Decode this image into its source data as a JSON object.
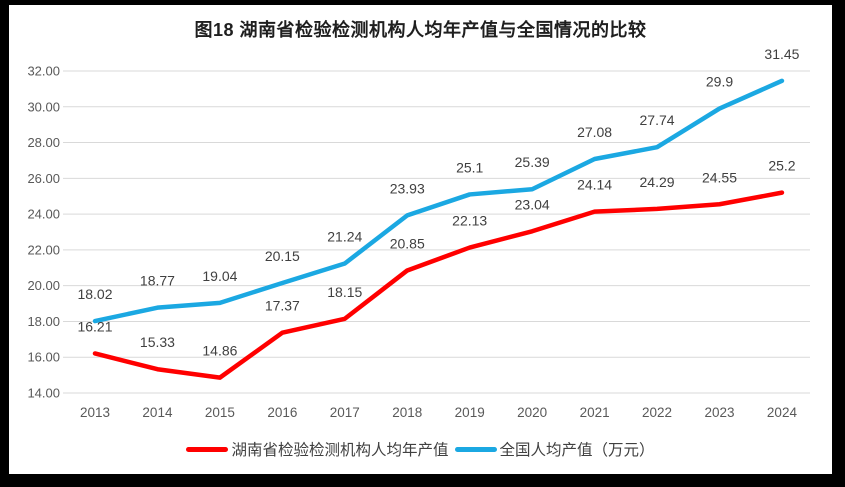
{
  "chart_data": {
    "type": "line",
    "title": "图18 湖南省检验检测机构人均年产值与全国情况的比较",
    "categories": [
      "2013",
      "2014",
      "2015",
      "2016",
      "2017",
      "2018",
      "2019",
      "2020",
      "2021",
      "2022",
      "2023",
      "2024"
    ],
    "series": [
      {
        "name": "湖南省检验检测机构人均年产值",
        "color": "#FF0000",
        "values": [
          16.21,
          15.33,
          14.86,
          17.37,
          18.15,
          20.85,
          22.13,
          23.04,
          24.14,
          24.29,
          24.55,
          25.2
        ],
        "labels": [
          "16.21",
          "15.33",
          "14.86",
          "17.37",
          "18.15",
          "20.85",
          "22.13",
          "23.04",
          "24.14",
          "24.29",
          "24.55",
          "25.2"
        ]
      },
      {
        "name": "全国人均产值（万元）",
        "color": "#1BA8E2",
        "values": [
          18.02,
          18.77,
          19.04,
          20.15,
          21.24,
          23.93,
          25.1,
          25.39,
          27.08,
          27.74,
          29.9,
          31.45
        ],
        "labels": [
          "18.02",
          "18.77",
          "19.04",
          "20.15",
          "21.24",
          "23.93",
          "25.1",
          "25.39",
          "27.08",
          "27.74",
          "29.9",
          "31.45"
        ]
      }
    ],
    "ylim": [
      14,
      32
    ],
    "ytick_step": 2,
    "ytick_labels": [
      "14.00",
      "16.00",
      "18.00",
      "20.00",
      "22.00",
      "24.00",
      "26.00",
      "28.00",
      "30.00",
      "32.00"
    ],
    "xlabel": "",
    "ylabel": "",
    "grid": true,
    "legend_position": "bottom",
    "colors": {
      "gridline": "#D9D9D9",
      "tick_text": "#595959",
      "data_label_text": "#404040",
      "title_text": "#1F1F1F",
      "legend_text": "#404040",
      "frame": "#000000",
      "background": "#FFFFFF"
    }
  }
}
